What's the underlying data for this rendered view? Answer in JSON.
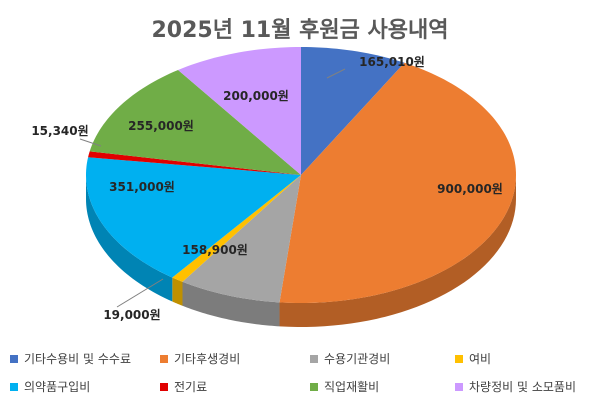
{
  "chart_data": {
    "type": "pie",
    "title": "2025년 11월 후원금 사용내역",
    "categories": [
      "기타수용비 및 수수료",
      "기타후생경비",
      "수용기관경비",
      "여비",
      "의약품구입비",
      "전기료",
      "직업재활비",
      "차량정비 및 소모품비"
    ],
    "values": [
      165010,
      900000,
      158900,
      19000,
      351000,
      15340,
      255000,
      200000
    ],
    "labels": [
      "165,010원",
      "900,000원",
      "158,900원",
      "19,000원",
      "351,000원",
      "15,340원",
      "255,000원",
      "200,000원"
    ],
    "colors": [
      "#4472C4",
      "#ED7D31",
      "#A5A5A5",
      "#FFC000",
      "#00B0F0",
      "#E00000",
      "#70AD47",
      "#CC99FF"
    ],
    "legend_position": "bottom"
  }
}
